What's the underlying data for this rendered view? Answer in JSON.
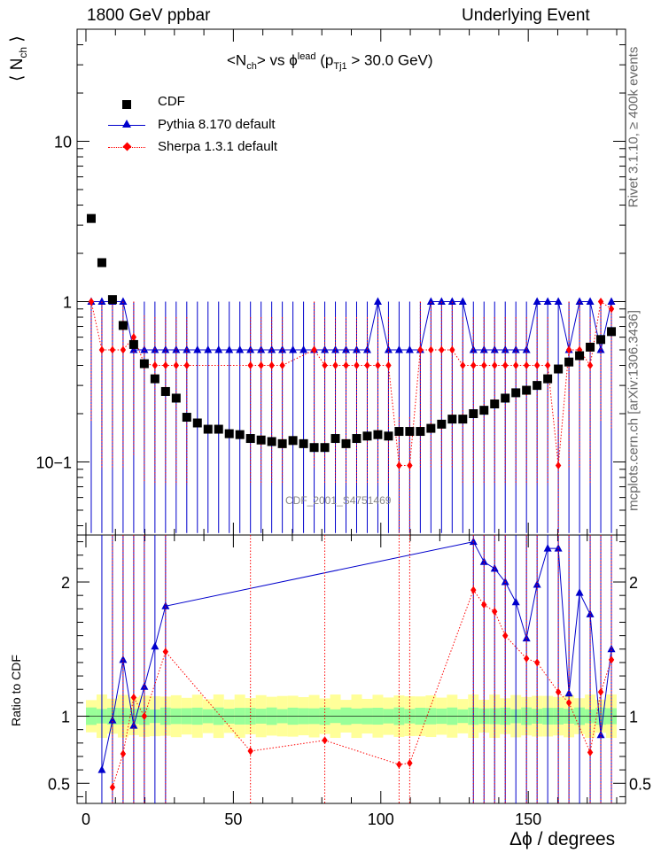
{
  "header": {
    "left": "1800 GeV ppbar",
    "right": "Underlying Event"
  },
  "side": {
    "rivet": "Rivet 3.1.10, ≥ 400k events",
    "mcplots": "mcplots.cern.ch [arXiv:1306.3436]"
  },
  "watermark": "CDF_2001_S4751469",
  "chart_data": [
    {
      "type": "scatter",
      "title": "<N_ch> vs ϕ^lead (p_Tj1 > 30.0 GeV)",
      "ylabel": "⟨ N_ch ⟩",
      "xlabel": "Δϕ / degrees",
      "yscale": "log",
      "xlim": [
        -3,
        183
      ],
      "ylim": [
        0.035,
        50
      ],
      "yticklabels": [
        "10^{−1}",
        "1",
        "10"
      ],
      "legend_position": "top-left",
      "legend": [
        "CDF",
        "Pythia 8.170 default",
        "Sherpa 1.3.1 default"
      ],
      "series": [
        {
          "name": "CDF",
          "color": "#000000",
          "marker": "square",
          "x": [
            1.8,
            5.4,
            9,
            12.6,
            16.2,
            19.8,
            23.4,
            27,
            30.6,
            34.2,
            37.8,
            41.4,
            45,
            48.6,
            52.2,
            55.8,
            59.4,
            63,
            66.6,
            70.2,
            73.8,
            77.4,
            81,
            84.6,
            88.2,
            91.8,
            95.4,
            99,
            102.6,
            106.2,
            109.8,
            113.4,
            117,
            120.6,
            124.2,
            127.8,
            131.4,
            135,
            138.6,
            142.2,
            145.8,
            149.4,
            153,
            156.6,
            160.2,
            163.8,
            167.4,
            171,
            174.6,
            178.2
          ],
          "y": [
            3.3,
            1.75,
            1.03,
            0.71,
            0.54,
            0.41,
            0.33,
            0.275,
            0.25,
            0.19,
            0.175,
            0.16,
            0.16,
            0.15,
            0.148,
            0.14,
            0.137,
            0.134,
            0.13,
            0.136,
            0.13,
            0.123,
            0.123,
            0.14,
            0.13,
            0.14,
            0.145,
            0.148,
            0.145,
            0.155,
            0.155,
            0.155,
            0.162,
            0.172,
            0.185,
            0.185,
            0.2,
            0.21,
            0.23,
            0.25,
            0.27,
            0.28,
            0.3,
            0.33,
            0.38,
            0.42,
            0.46,
            0.52,
            0.58,
            0.65
          ]
        },
        {
          "name": "Pythia 8.170 default",
          "color": "#0000cc",
          "marker": "triangle",
          "x": [
            1.8,
            5.4,
            9,
            12.6,
            16.2,
            19.8,
            23.4,
            27,
            30.6,
            34.2,
            37.8,
            41.4,
            45,
            48.6,
            52.2,
            55.8,
            59.4,
            63,
            66.6,
            70.2,
            73.8,
            77.4,
            81,
            84.6,
            88.2,
            91.8,
            95.4,
            99,
            102.6,
            106.2,
            109.8,
            113.4,
            117,
            120.6,
            124.2,
            127.8,
            131.4,
            135,
            138.6,
            142.2,
            145.8,
            149.4,
            153,
            156.6,
            160.2,
            163.8,
            167.4,
            171,
            174.6,
            178.2
          ],
          "y": [
            1,
            1,
            1,
            1,
            0.5,
            0.5,
            0.5,
            0.5,
            0.5,
            0.5,
            0.5,
            0.5,
            0.5,
            0.5,
            0.5,
            0.5,
            0.5,
            0.5,
            0.5,
            0.5,
            0.5,
            0.5,
            0.5,
            0.5,
            0.5,
            0.5,
            0.5,
            1,
            0.5,
            0.5,
            0.5,
            0.5,
            1,
            1,
            1,
            1,
            0.5,
            0.5,
            0.5,
            0.5,
            0.5,
            0.5,
            1,
            1,
            1,
            0.5,
            1,
            1,
            0.5,
            1
          ]
        },
        {
          "name": "Sherpa 1.3.1 default",
          "color": "#ff0000",
          "marker": "diamond",
          "x": [
            1.8,
            5.4,
            9,
            12.6,
            16.2,
            19.8,
            23.4,
            27,
            30.6,
            34.2,
            37.8,
            41.4,
            45,
            48.6,
            52.2,
            55.8,
            59.4,
            63,
            66.6,
            70.2,
            73.8,
            77.4,
            81,
            84.6,
            88.2,
            91.8,
            95.4,
            99,
            102.6,
            106.2,
            109.8,
            113.4,
            117,
            120.6,
            124.2,
            127.8,
            131.4,
            135,
            138.6,
            142.2,
            145.8,
            149.4,
            153,
            156.6,
            160.2,
            163.8,
            167.4,
            171,
            174.6,
            178.2
          ],
          "y": [
            1,
            0.5,
            0.5,
            0.5,
            0.6,
            0.41,
            0.4,
            0.4,
            0.4,
            0.4,
            null,
            null,
            null,
            null,
            null,
            0.4,
            0.4,
            0.4,
            0.4,
            null,
            null,
            0.5,
            0.4,
            0.4,
            0.4,
            0.4,
            0.4,
            0.4,
            0.4,
            0.095,
            0.095,
            0.5,
            0.5,
            0.5,
            0.5,
            0.4,
            0.4,
            0.4,
            0.4,
            0.4,
            0.4,
            0.4,
            0.4,
            0.4,
            0.095,
            0.5,
            0.5,
            0.4,
            1,
            0.9
          ]
        }
      ]
    },
    {
      "type": "scatter",
      "ylabel": "Ratio to CDF",
      "xlabel": "Δϕ / degrees",
      "xlim": [
        -3,
        183
      ],
      "ylim": [
        0.35,
        2.35
      ],
      "yticks": [
        0.5,
        1,
        2
      ],
      "xticks": [
        0,
        50,
        100,
        150
      ],
      "bands": {
        "inner_color": "#99ff99",
        "outer_color": "#ffff99",
        "inner": 0.05,
        "outer": 0.12
      },
      "series": [
        {
          "name": "Pythia 8.170 default",
          "color": "#0000cc",
          "x": [
            5.4,
            9,
            12.6,
            16.2,
            19.8,
            23.4,
            27,
            131.4,
            135,
            138.6,
            142.2,
            145.8,
            149.4,
            153,
            156.6,
            160.2,
            163.8,
            167.4,
            171,
            174.6,
            178.2
          ],
          "y": [
            0.6,
            0.97,
            1.42,
            0.93,
            1.22,
            1.52,
            1.82,
            2.3,
            2.15,
            2.1,
            2.0,
            1.85,
            1.58,
            1.98,
            2.25,
            2.25,
            1.17,
            1.92,
            1.76,
            0.86,
            1.5
          ]
        },
        {
          "name": "Sherpa 1.3.1 default",
          "color": "#ff0000",
          "x": [
            9,
            12.6,
            16.2,
            19.8,
            27,
            55.8,
            81,
            106.2,
            109.8,
            131.4,
            135,
            138.6,
            142.2,
            149.4,
            153,
            160.2,
            163.8,
            171,
            174.6,
            178.2
          ],
          "y": [
            0.47,
            0.72,
            1.14,
            1.0,
            1.48,
            0.74,
            0.82,
            0.64,
            0.65,
            1.94,
            1.83,
            1.78,
            1.6,
            1.43,
            1.4,
            1.18,
            1.1,
            0.73,
            1.18,
            1.42
          ]
        }
      ]
    }
  ]
}
